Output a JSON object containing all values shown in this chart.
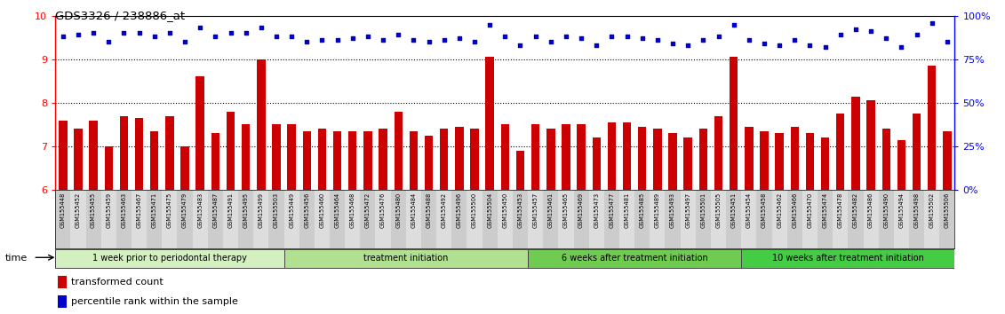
{
  "title": "GDS3326 / 238886_at",
  "samples": [
    "GSM155448",
    "GSM155452",
    "GSM155455",
    "GSM155459",
    "GSM155463",
    "GSM155467",
    "GSM155471",
    "GSM155475",
    "GSM155479",
    "GSM155483",
    "GSM155487",
    "GSM155491",
    "GSM155495",
    "GSM155499",
    "GSM155503",
    "GSM155449",
    "GSM155456",
    "GSM155460",
    "GSM155464",
    "GSM155468",
    "GSM155472",
    "GSM155476",
    "GSM155480",
    "GSM155484",
    "GSM155488",
    "GSM155492",
    "GSM155496",
    "GSM155500",
    "GSM155504",
    "GSM155450",
    "GSM155453",
    "GSM155457",
    "GSM155461",
    "GSM155465",
    "GSM155469",
    "GSM155473",
    "GSM155477",
    "GSM155481",
    "GSM155485",
    "GSM155489",
    "GSM155493",
    "GSM155497",
    "GSM155501",
    "GSM155505",
    "GSM155451",
    "GSM155454",
    "GSM155458",
    "GSM155462",
    "GSM155466",
    "GSM155470",
    "GSM155474",
    "GSM155478",
    "GSM155482",
    "GSM155486",
    "GSM155490",
    "GSM155494",
    "GSM155498",
    "GSM155502",
    "GSM155506"
  ],
  "bar_values": [
    7.6,
    7.4,
    7.6,
    7.0,
    7.7,
    7.65,
    7.35,
    7.7,
    7.0,
    8.6,
    7.3,
    7.8,
    7.5,
    9.0,
    7.5,
    7.5,
    7.35,
    7.4,
    7.35,
    7.35,
    7.35,
    7.4,
    7.8,
    7.35,
    7.25,
    7.4,
    7.45,
    7.4,
    9.05,
    7.5,
    6.9,
    7.5,
    7.4,
    7.5,
    7.5,
    7.2,
    7.55,
    7.55,
    7.45,
    7.4,
    7.3,
    7.2,
    7.4,
    7.7,
    9.05,
    7.45,
    7.35,
    7.3,
    7.45,
    7.3,
    7.2,
    7.75,
    8.15,
    8.05,
    7.4,
    7.15,
    7.75,
    8.85,
    7.35
  ],
  "dot_values": [
    88,
    89,
    90,
    85,
    90,
    90,
    88,
    90,
    85,
    93,
    88,
    90,
    90,
    93,
    88,
    88,
    85,
    86,
    86,
    87,
    88,
    86,
    89,
    86,
    85,
    86,
    87,
    85,
    95,
    88,
    83,
    88,
    85,
    88,
    87,
    83,
    88,
    88,
    87,
    86,
    84,
    83,
    86,
    88,
    95,
    86,
    84,
    83,
    86,
    83,
    82,
    89,
    92,
    91,
    87,
    82,
    89,
    96,
    85
  ],
  "bar_values_right": [
    null,
    null,
    null,
    null,
    null,
    null,
    null,
    null,
    null,
    null,
    null,
    null,
    null,
    null,
    null,
    null,
    null,
    null,
    null,
    null,
    null,
    null,
    null,
    null,
    null,
    null,
    null,
    null,
    null,
    null,
    null,
    null,
    null,
    null,
    null,
    null,
    null,
    null,
    null,
    null,
    null,
    null,
    null,
    null,
    null,
    null,
    null,
    null,
    null,
    null,
    null,
    null,
    null,
    null,
    null,
    null,
    null,
    null,
    null
  ],
  "groups": [
    {
      "label": "1 week prior to periodontal therapy",
      "start": 0,
      "end": 15,
      "color": "#d4f0c0"
    },
    {
      "label": "treatment initiation",
      "start": 15,
      "end": 31,
      "color": "#b0e090"
    },
    {
      "label": "6 weeks after treatment initiation",
      "start": 31,
      "end": 45,
      "color": "#70cc50"
    },
    {
      "label": "10 weeks after treatment initiation",
      "start": 45,
      "end": 59,
      "color": "#44cc44"
    }
  ],
  "ylim_left": [
    6,
    10
  ],
  "ylim_right": [
    0,
    100
  ],
  "yticks_left": [
    6,
    7,
    8,
    9,
    10
  ],
  "yticks_right": [
    0,
    25,
    50,
    75,
    100
  ],
  "bar_color": "#cc0000",
  "dot_color": "#0000cc",
  "bg_color": "#ffffff"
}
